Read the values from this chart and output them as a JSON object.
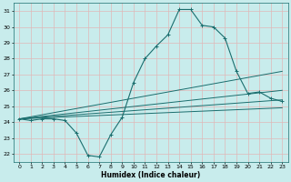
{
  "xlabel": "Humidex (Indice chaleur)",
  "bg_color": "#c8ecec",
  "grid_color": "#e0b8b8",
  "line_color": "#1a6e6e",
  "xlim": [
    -0.5,
    23.5
  ],
  "ylim": [
    21.5,
    31.5
  ],
  "xticks": [
    0,
    1,
    2,
    3,
    4,
    5,
    6,
    7,
    8,
    9,
    10,
    11,
    12,
    13,
    14,
    15,
    16,
    17,
    18,
    19,
    20,
    21,
    22,
    23
  ],
  "yticks": [
    22,
    23,
    24,
    25,
    26,
    27,
    28,
    29,
    30,
    31
  ],
  "main_line": {
    "x": [
      0,
      1,
      2,
      3,
      4,
      5,
      6,
      7,
      8,
      9,
      10,
      11,
      12,
      13,
      14,
      15,
      16,
      17,
      18,
      19,
      20,
      21,
      22,
      23
    ],
    "y": [
      24.2,
      24.1,
      24.2,
      24.2,
      24.1,
      23.3,
      21.9,
      21.8,
      23.2,
      24.3,
      26.5,
      28.0,
      28.8,
      29.5,
      31.1,
      31.1,
      30.1,
      30.0,
      29.3,
      27.2,
      25.8,
      25.9,
      25.5,
      25.3
    ]
  },
  "straight_lines": [
    {
      "x": [
        0,
        23
      ],
      "y": [
        24.2,
        27.2
      ]
    },
    {
      "x": [
        0,
        23
      ],
      "y": [
        24.2,
        26.0
      ]
    },
    {
      "x": [
        0,
        23
      ],
      "y": [
        24.2,
        25.4
      ]
    },
    {
      "x": [
        0,
        23
      ],
      "y": [
        24.2,
        24.9
      ]
    }
  ]
}
